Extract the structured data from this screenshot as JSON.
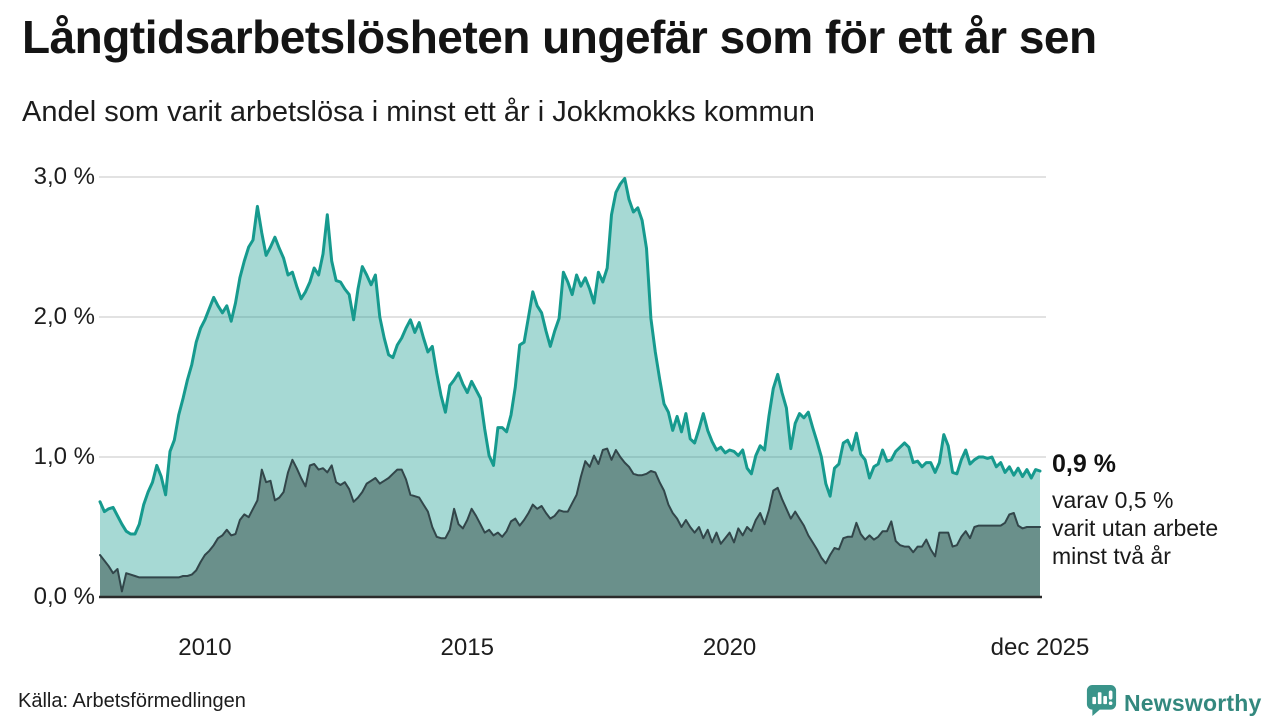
{
  "header": {
    "title": "Långtidsarbetslösheten ungefär som för ett år sen",
    "subtitle": "Andel som varit arbetslösa i minst ett år i Jokkmokks kommun"
  },
  "annotation": {
    "value": "0,9 %",
    "lines": [
      "varav 0,5 %",
      "varit utan arbete",
      "minst två år"
    ]
  },
  "source": {
    "label": "Källa: Arbetsförmedlingen"
  },
  "branding": {
    "name": "Newsworthy",
    "logo_color": "#3a948a",
    "text_color": "#33887e"
  },
  "chart_data": {
    "type": "area",
    "title": "Långtidsarbetslösheten ungefär som för ett år sen",
    "subtitle": "Andel som varit arbetslösa i minst ett år i Jokkmokks kommun",
    "unit": "%",
    "frequency": "monthly",
    "x_start": "2008-01",
    "x_end": "2025-12",
    "ylim": [
      0.0,
      3.0
    ],
    "grid": "horizontal",
    "gridline_color": "#d8d8d8",
    "baseline_color": "#2b2b2b",
    "y_ticks": [
      {
        "value": 0.0,
        "label": "0,0 %"
      },
      {
        "value": 1.0,
        "label": "1,0 %"
      },
      {
        "value": 2.0,
        "label": "2,0 %"
      },
      {
        "value": 3.0,
        "label": "3,0 %"
      }
    ],
    "x_ticks": [
      {
        "month_index": 24,
        "label": "2010"
      },
      {
        "month_index": 84,
        "label": "2015"
      },
      {
        "month_index": 144,
        "label": "2020"
      },
      {
        "month_index": 215,
        "label": "dec 2025"
      }
    ],
    "series": [
      {
        "name": "Varit arbetslösa i minst ett år",
        "end_label": "0,9 %",
        "end_value": 0.9,
        "line_color": "#169a8e",
        "line_width": 3,
        "fill_color": "rgba(22,154,142,0.38)",
        "values_pct": [
          0.68,
          0.61,
          0.63,
          0.64,
          0.58,
          0.52,
          0.47,
          0.45,
          0.45,
          0.52,
          0.66,
          0.75,
          0.82,
          0.94,
          0.86,
          0.73,
          1.04,
          1.12,
          1.3,
          1.42,
          1.55,
          1.66,
          1.82,
          1.92,
          1.98,
          2.06,
          2.14,
          2.08,
          2.03,
          2.08,
          1.97,
          2.1,
          2.28,
          2.4,
          2.5,
          2.55,
          2.79,
          2.6,
          2.44,
          2.5,
          2.57,
          2.49,
          2.42,
          2.3,
          2.32,
          2.22,
          2.13,
          2.18,
          2.25,
          2.35,
          2.3,
          2.45,
          2.73,
          2.4,
          2.26,
          2.25,
          2.2,
          2.16,
          1.98,
          2.2,
          2.36,
          2.3,
          2.23,
          2.3,
          2.0,
          1.85,
          1.73,
          1.71,
          1.8,
          1.85,
          1.92,
          1.98,
          1.89,
          1.96,
          1.85,
          1.75,
          1.79,
          1.6,
          1.44,
          1.32,
          1.51,
          1.55,
          1.6,
          1.52,
          1.46,
          1.54,
          1.48,
          1.42,
          1.2,
          1.01,
          0.94,
          1.21,
          1.21,
          1.18,
          1.3,
          1.5,
          1.8,
          1.82,
          2.0,
          2.18,
          2.08,
          2.03,
          1.9,
          1.79,
          1.9,
          1.99,
          2.32,
          2.25,
          2.16,
          2.3,
          2.22,
          2.28,
          2.2,
          2.1,
          2.32,
          2.25,
          2.35,
          2.73,
          2.89,
          2.95,
          2.99,
          2.84,
          2.75,
          2.78,
          2.69,
          2.49,
          1.99,
          1.75,
          1.56,
          1.38,
          1.32,
          1.19,
          1.29,
          1.18,
          1.31,
          1.13,
          1.1,
          1.2,
          1.31,
          1.19,
          1.11,
          1.05,
          1.07,
          1.03,
          1.05,
          1.04,
          1.01,
          1.05,
          0.92,
          0.88,
          1.01,
          1.08,
          1.05,
          1.29,
          1.49,
          1.59,
          1.46,
          1.35,
          1.06,
          1.24,
          1.31,
          1.28,
          1.32,
          1.21,
          1.11,
          1.0,
          0.81,
          0.72,
          0.92,
          0.95,
          1.1,
          1.12,
          1.05,
          1.17,
          1.02,
          0.98,
          0.85,
          0.93,
          0.95,
          1.05,
          0.97,
          0.98,
          1.04,
          1.07,
          1.1,
          1.07,
          0.96,
          0.97,
          0.93,
          0.96,
          0.96,
          0.89,
          0.96,
          1.16,
          1.08,
          0.89,
          0.88,
          0.98,
          1.05,
          0.95,
          0.98,
          1.0,
          1.0,
          0.99,
          1.0,
          0.93,
          0.96,
          0.89,
          0.93,
          0.87,
          0.92,
          0.86,
          0.91,
          0.85,
          0.91,
          0.9
        ]
      },
      {
        "name": "Varit utan arbete minst två år",
        "end_label": "0,5 %",
        "end_value": 0.5,
        "line_color": "#32464a",
        "line_width": 2,
        "fill_color": "rgba(46,71,66,0.5)",
        "values_pct": [
          0.3,
          0.26,
          0.22,
          0.17,
          0.2,
          0.04,
          0.17,
          0.16,
          0.15,
          0.14,
          0.14,
          0.14,
          0.14,
          0.14,
          0.14,
          0.14,
          0.14,
          0.14,
          0.14,
          0.15,
          0.15,
          0.16,
          0.19,
          0.25,
          0.3,
          0.33,
          0.37,
          0.42,
          0.44,
          0.48,
          0.44,
          0.45,
          0.55,
          0.59,
          0.57,
          0.63,
          0.69,
          0.91,
          0.82,
          0.83,
          0.69,
          0.71,
          0.75,
          0.89,
          0.98,
          0.92,
          0.85,
          0.79,
          0.94,
          0.95,
          0.91,
          0.92,
          0.89,
          0.94,
          0.82,
          0.8,
          0.82,
          0.77,
          0.68,
          0.71,
          0.75,
          0.81,
          0.83,
          0.85,
          0.81,
          0.83,
          0.85,
          0.88,
          0.91,
          0.91,
          0.84,
          0.73,
          0.72,
          0.71,
          0.66,
          0.61,
          0.5,
          0.43,
          0.42,
          0.42,
          0.48,
          0.63,
          0.52,
          0.49,
          0.55,
          0.63,
          0.58,
          0.52,
          0.46,
          0.48,
          0.44,
          0.46,
          0.43,
          0.47,
          0.54,
          0.56,
          0.51,
          0.55,
          0.6,
          0.66,
          0.63,
          0.65,
          0.6,
          0.56,
          0.58,
          0.62,
          0.61,
          0.61,
          0.67,
          0.73,
          0.86,
          0.97,
          0.93,
          1.01,
          0.95,
          1.05,
          1.06,
          0.98,
          1.05,
          1.0,
          0.96,
          0.93,
          0.88,
          0.87,
          0.87,
          0.88,
          0.9,
          0.89,
          0.82,
          0.76,
          0.66,
          0.6,
          0.56,
          0.5,
          0.55,
          0.5,
          0.46,
          0.5,
          0.42,
          0.48,
          0.39,
          0.46,
          0.38,
          0.42,
          0.46,
          0.39,
          0.49,
          0.44,
          0.5,
          0.47,
          0.55,
          0.6,
          0.52,
          0.62,
          0.76,
          0.78,
          0.7,
          0.63,
          0.56,
          0.61,
          0.56,
          0.51,
          0.44,
          0.39,
          0.34,
          0.28,
          0.24,
          0.3,
          0.35,
          0.34,
          0.42,
          0.43,
          0.43,
          0.53,
          0.45,
          0.41,
          0.44,
          0.41,
          0.43,
          0.47,
          0.47,
          0.54,
          0.4,
          0.37,
          0.36,
          0.36,
          0.32,
          0.36,
          0.36,
          0.41,
          0.34,
          0.29,
          0.46,
          0.46,
          0.46,
          0.36,
          0.37,
          0.43,
          0.47,
          0.42,
          0.5,
          0.51,
          0.51,
          0.51,
          0.51,
          0.51,
          0.51,
          0.53,
          0.59,
          0.6,
          0.51,
          0.49,
          0.5,
          0.5,
          0.5,
          0.5
        ]
      }
    ]
  }
}
